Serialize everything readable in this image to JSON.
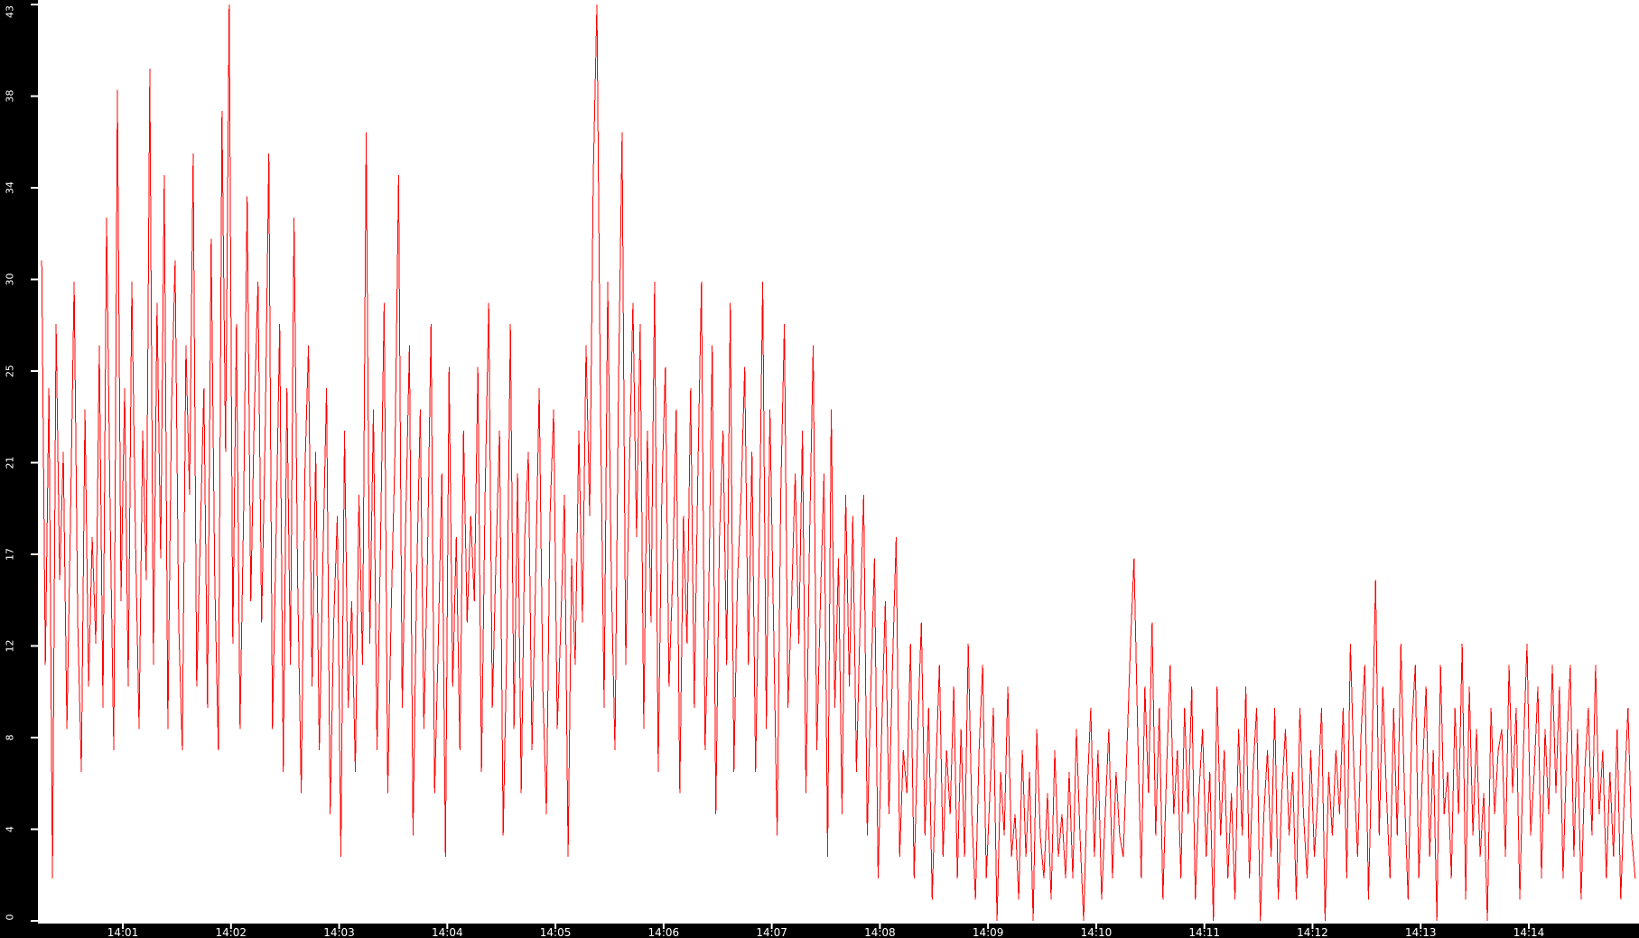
{
  "chart_data": {
    "type": "line",
    "title": "",
    "legend": "none",
    "grid": "off",
    "background_color": "#ffffff",
    "axis_bar_color": "#000000",
    "tick_label_color": "#ffffff",
    "line_color": "#ff0000",
    "xlabel": "",
    "ylabel": "",
    "ylim": [
      0,
      43
    ],
    "y_tick_labels": [
      "0",
      "4",
      "8",
      "12",
      "17",
      "21",
      "25",
      "30",
      "34",
      "38",
      "43"
    ],
    "x_tick_labels": [
      "14:01",
      "14:02",
      "14:03",
      "14:04",
      "14:05",
      "14:06",
      "14:07",
      "14:08",
      "14:09",
      "14:10",
      "14:11",
      "14:12",
      "14:13",
      "14:14"
    ],
    "x_start_time": "14:00:15",
    "x_end_time": "14:14:59",
    "sample_interval_seconds": 2,
    "values": [
      31,
      12,
      25,
      2,
      28,
      16,
      22,
      9,
      19,
      30,
      14,
      7,
      24,
      11,
      18,
      13,
      27,
      10,
      33,
      19,
      8,
      39,
      15,
      25,
      11,
      30,
      18,
      9,
      23,
      16,
      40,
      12,
      29,
      17,
      35,
      9,
      24,
      31,
      14,
      8,
      27,
      20,
      36,
      11,
      18,
      25,
      10,
      32,
      16,
      8,
      38,
      22,
      43,
      13,
      28,
      9,
      19,
      34,
      15,
      24,
      30,
      14,
      23,
      36,
      9,
      18,
      28,
      7,
      25,
      12,
      33,
      16,
      6,
      21,
      27,
      11,
      22,
      8,
      17,
      25,
      5,
      14,
      19,
      3,
      23,
      10,
      15,
      7,
      20,
      12,
      37,
      13,
      24,
      8,
      18,
      29,
      6,
      15,
      22,
      35,
      10,
      19,
      27,
      4,
      16,
      24,
      9,
      17,
      28,
      6,
      13,
      21,
      3,
      26,
      11,
      18,
      8,
      23,
      14,
      19,
      15,
      26,
      7,
      20,
      29,
      10,
      17,
      23,
      4,
      13,
      28,
      9,
      21,
      6,
      18,
      22,
      8,
      16,
      25,
      11,
      5,
      19,
      24,
      9,
      14,
      20,
      3,
      17,
      12,
      23,
      14,
      27,
      19,
      35,
      43,
      24,
      10,
      30,
      16,
      8,
      25,
      37,
      12,
      21,
      29,
      18,
      28,
      9,
      23,
      14,
      30,
      7,
      20,
      26,
      11,
      16,
      24,
      6,
      19,
      13,
      25,
      10,
      21,
      30,
      8,
      15,
      27,
      5,
      18,
      23,
      12,
      29,
      7,
      16,
      20,
      26,
      12,
      22,
      7,
      17,
      30,
      9,
      24,
      14,
      4,
      20,
      28,
      10,
      15,
      21,
      13,
      23,
      6,
      18,
      27,
      8,
      15,
      21,
      3,
      24,
      10,
      17,
      5,
      20,
      11,
      19,
      7,
      14,
      20,
      4,
      11,
      17,
      2,
      9,
      15,
      5,
      12,
      18,
      3,
      8,
      6,
      13,
      2,
      9,
      14,
      4,
      10,
      1,
      7,
      12,
      3,
      8,
      5,
      11,
      2,
      9,
      3,
      13,
      5,
      1,
      8,
      12,
      2,
      6,
      10,
      0,
      7,
      4,
      11,
      3,
      5,
      1,
      8,
      3,
      7,
      0,
      9,
      4,
      2,
      6,
      1,
      8,
      3,
      5,
      2,
      7,
      2,
      9,
      4,
      0,
      6,
      10,
      3,
      8,
      1,
      5,
      9,
      2,
      7,
      4,
      3,
      8,
      13,
      17,
      9,
      2,
      11,
      6,
      14,
      4,
      10,
      1,
      7,
      12,
      5,
      8,
      2,
      10,
      5,
      11,
      1,
      6,
      9,
      3,
      7,
      0,
      11,
      4,
      8,
      2,
      6,
      1,
      9,
      4,
      11,
      2,
      7,
      10,
      0,
      5,
      8,
      3,
      10,
      1,
      6,
      9,
      4,
      7,
      1,
      10,
      5,
      2,
      8,
      3,
      6,
      10,
      0,
      7,
      4,
      8,
      5,
      10,
      2,
      13,
      7,
      3,
      9,
      12,
      1,
      8,
      16,
      4,
      11,
      6,
      2,
      10,
      4,
      13,
      6,
      1,
      9,
      12,
      2,
      7,
      11,
      3,
      8,
      0,
      12,
      5,
      7,
      2,
      10,
      5,
      13,
      1,
      11,
      4,
      9,
      3,
      6,
      0,
      10,
      5,
      8,
      9,
      3,
      12,
      6,
      10,
      1,
      8,
      13,
      4,
      7,
      11,
      2,
      9,
      5,
      12,
      6,
      11,
      2,
      8,
      12,
      3,
      9,
      1,
      7,
      10,
      4,
      12,
      5,
      8,
      2,
      7,
      3,
      9,
      1,
      6,
      10,
      4,
      2
    ]
  }
}
